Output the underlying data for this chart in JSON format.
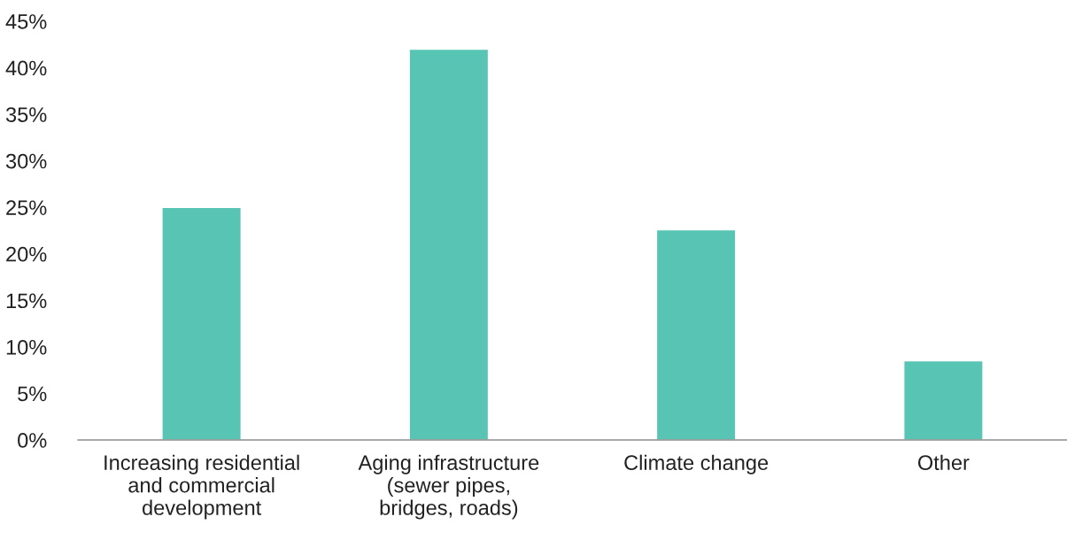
{
  "chart_data": {
    "type": "bar",
    "categories": [
      "Increasing residential\nand commercial\ndevelopment",
      "Aging infrastructure\n(sewer pipes,\nbridges, roads)",
      "Climate change",
      "Other"
    ],
    "values": [
      25,
      42,
      22.6,
      8.5
    ],
    "color": "#58c4b4",
    "ylim": [
      0,
      45
    ],
    "yticks": [
      {
        "value": 0,
        "label": "0%"
      },
      {
        "value": 5,
        "label": "5%"
      },
      {
        "value": 10,
        "label": "10%"
      },
      {
        "value": 15,
        "label": "15%"
      },
      {
        "value": 20,
        "label": "20%"
      },
      {
        "value": 25,
        "label": "25%"
      },
      {
        "value": 30,
        "label": "30%"
      },
      {
        "value": 35,
        "label": "35%"
      },
      {
        "value": 40,
        "label": "40%"
      },
      {
        "value": 45,
        "label": "45%"
      }
    ],
    "grid": false
  }
}
